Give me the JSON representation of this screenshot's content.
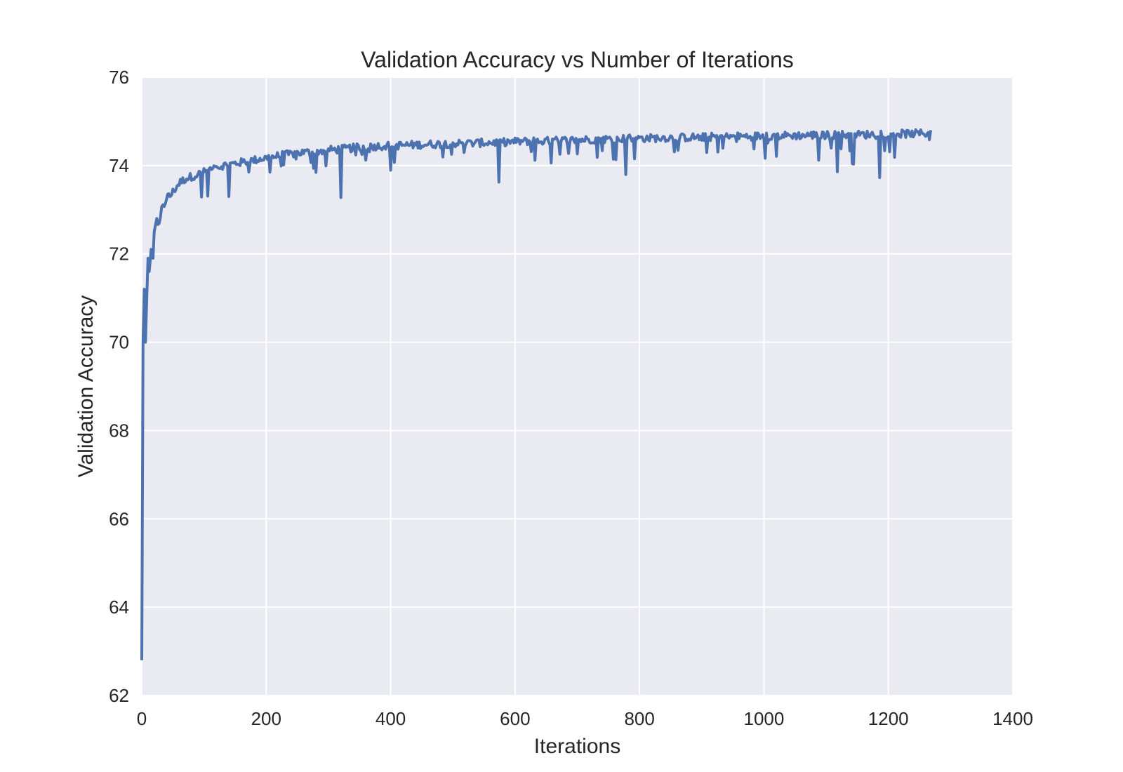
{
  "chart_data": {
    "type": "line",
    "title": "Validation Accuracy vs Number of Iterations",
    "xlabel": "Iterations",
    "ylabel": "Validation Accuracy",
    "xlim": [
      0,
      1400
    ],
    "ylim": [
      62,
      76
    ],
    "xticks": [
      0,
      200,
      400,
      600,
      800,
      1000,
      1200,
      1400
    ],
    "yticks": [
      62,
      64,
      66,
      68,
      70,
      72,
      74,
      76
    ],
    "xtick_labels": [
      "0",
      "200",
      "400",
      "600",
      "800",
      "1000",
      "1200",
      "1400"
    ],
    "ytick_labels": [
      "62",
      "64",
      "66",
      "68",
      "70",
      "72",
      "74",
      "76"
    ],
    "grid": true,
    "colors": {
      "background": "#eaeaf2",
      "grid": "#ffffff",
      "line": "#4c72b0",
      "text": "#262626"
    },
    "series": [
      {
        "x": [
          0,
          2,
          4,
          6,
          8,
          10,
          12,
          15,
          18,
          20,
          24,
          28,
          32,
          36,
          40,
          45,
          50,
          55,
          60,
          70,
          80,
          90,
          100,
          110,
          120,
          130,
          140,
          150,
          160,
          170,
          180,
          190,
          200,
          210,
          220,
          230,
          240,
          250,
          260,
          270,
          280,
          290,
          300,
          320,
          340,
          360,
          380,
          400,
          420,
          440,
          460,
          480,
          500,
          520,
          540,
          560,
          580,
          600,
          620,
          640,
          660,
          680,
          700,
          720,
          740,
          760,
          780,
          800,
          820,
          840,
          860,
          880,
          900,
          920,
          940,
          960,
          980,
          1000,
          1020,
          1040,
          1060,
          1080,
          1100,
          1120,
          1140,
          1160,
          1180,
          1200,
          1220,
          1240,
          1260,
          1268
        ],
        "y": [
          62.8,
          70.0,
          71.2,
          70.0,
          71.0,
          71.9,
          71.6,
          72.1,
          71.9,
          72.5,
          72.8,
          72.6,
          73.0,
          73.1,
          73.3,
          73.3,
          73.4,
          73.5,
          73.6,
          73.7,
          73.75,
          73.8,
          73.85,
          73.9,
          73.95,
          74.0,
          74.02,
          74.05,
          74.07,
          74.1,
          74.12,
          74.15,
          74.17,
          74.2,
          74.22,
          74.24,
          74.26,
          74.28,
          74.3,
          74.3,
          74.32,
          74.33,
          74.35,
          74.37,
          74.4,
          74.42,
          74.44,
          74.45,
          74.46,
          74.47,
          74.48,
          74.49,
          74.5,
          74.5,
          74.51,
          74.52,
          74.53,
          74.54,
          74.55,
          74.55,
          74.56,
          74.57,
          74.58,
          74.59,
          74.6,
          74.6,
          74.61,
          74.62,
          74.62,
          74.63,
          74.63,
          74.64,
          74.64,
          74.65,
          74.65,
          74.66,
          74.66,
          74.67,
          74.67,
          74.68,
          74.68,
          74.69,
          74.69,
          74.7,
          74.7,
          74.7,
          74.71,
          74.71,
          74.72,
          74.72,
          74.73,
          74.8
        ]
      }
    ]
  }
}
